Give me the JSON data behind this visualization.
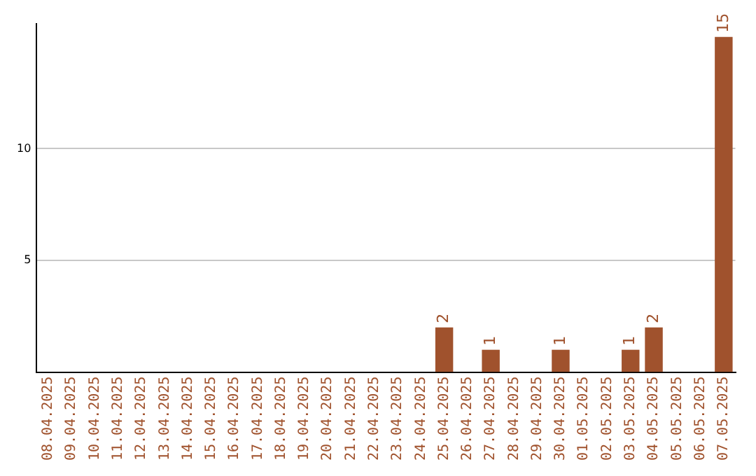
{
  "chart_data": {
    "type": "bar",
    "categories": [
      "08.04.2025",
      "09.04.2025",
      "10.04.2025",
      "11.04.2025",
      "12.04.2025",
      "13.04.2025",
      "14.04.2025",
      "15.04.2025",
      "16.04.2025",
      "17.04.2025",
      "18.04.2025",
      "19.04.2025",
      "20.04.2025",
      "21.04.2025",
      "22.04.2025",
      "23.04.2025",
      "24.04.2025",
      "25.04.2025",
      "26.04.2025",
      "27.04.2025",
      "28.04.2025",
      "29.04.2025",
      "30.04.2025",
      "01.05.2025",
      "02.05.2025",
      "03.05.2025",
      "04.05.2025",
      "05.05.2025",
      "06.05.2025",
      "07.05.2025"
    ],
    "values": [
      0,
      0,
      0,
      0,
      0,
      0,
      0,
      0,
      0,
      0,
      0,
      0,
      0,
      0,
      0,
      0,
      0,
      2,
      0,
      1,
      0,
      0,
      1,
      0,
      0,
      1,
      2,
      0,
      0,
      15
    ],
    "value_labels": [
      null,
      null,
      null,
      null,
      null,
      null,
      null,
      null,
      null,
      null,
      null,
      null,
      null,
      null,
      null,
      null,
      null,
      "2",
      null,
      "1",
      null,
      null,
      "1",
      null,
      null,
      "1",
      "2",
      null,
      null,
      "15"
    ],
    "color": "#a0522d",
    "ylim": [
      0,
      15.6
    ],
    "yticks": [
      5,
      10
    ],
    "grid": "y",
    "legend": false
  }
}
